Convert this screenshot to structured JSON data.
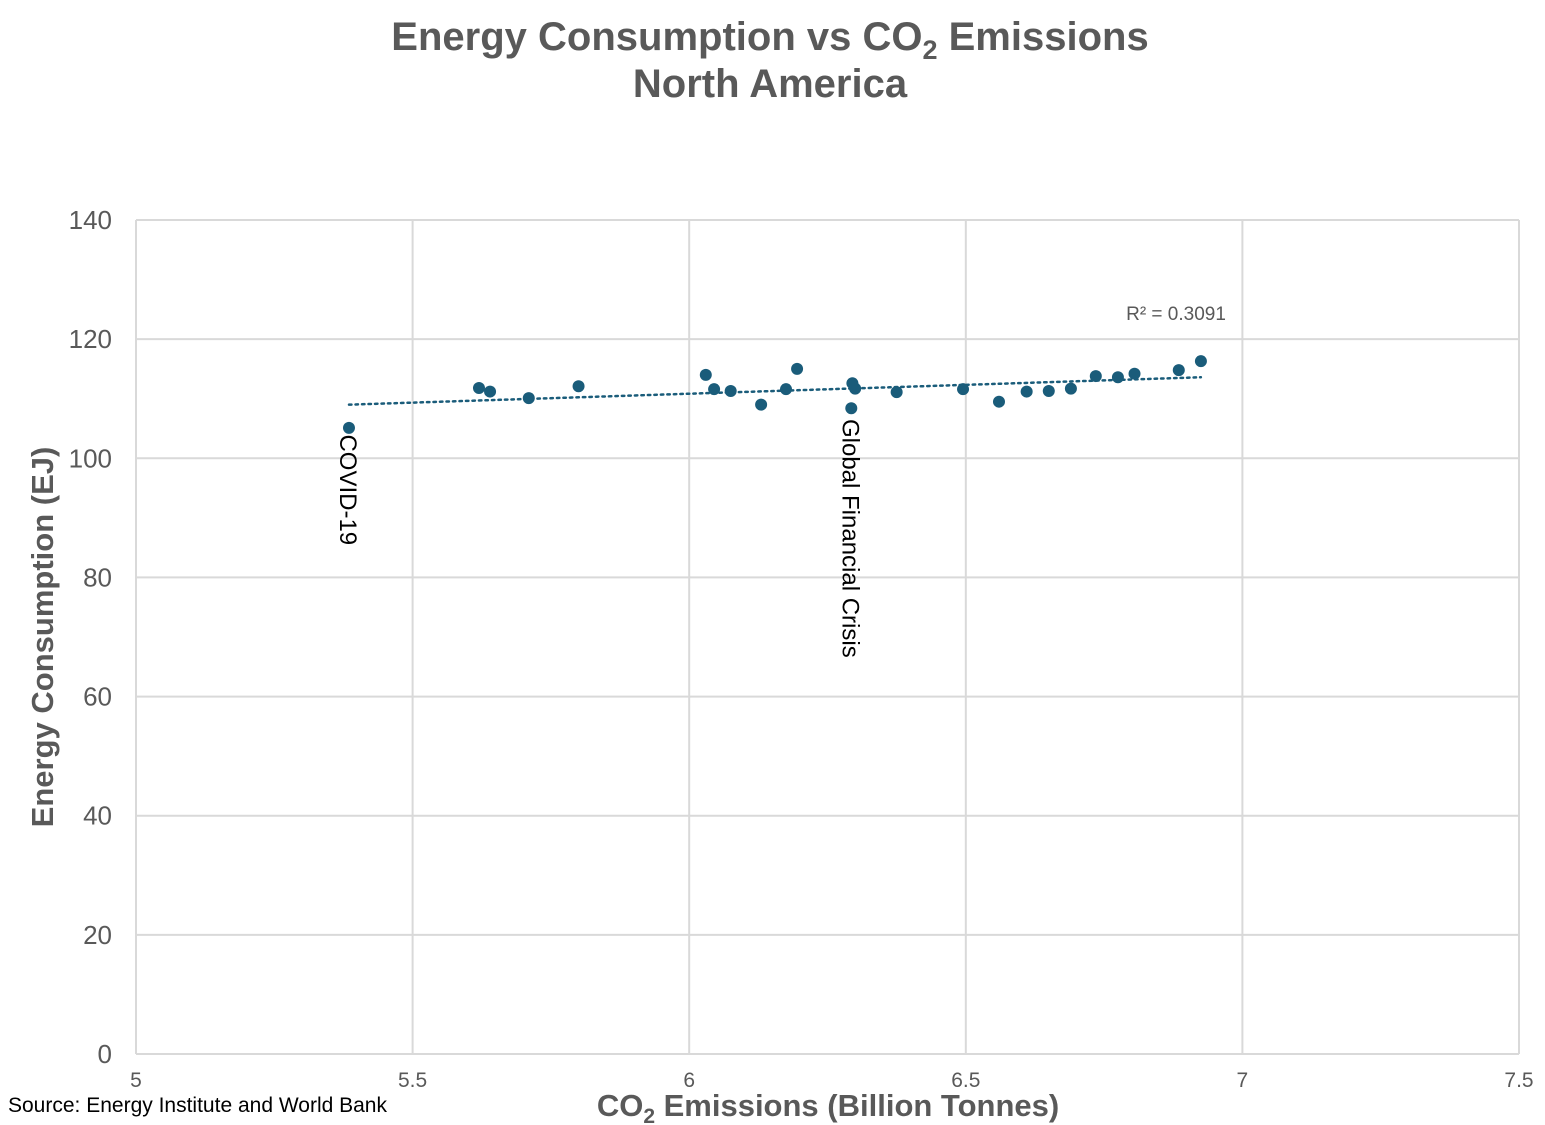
{
  "chart_data": {
    "type": "scatter",
    "title_line1_prefix": "Energy Consumption vs CO",
    "title_line1_sub": "2",
    "title_line1_suffix": " Emissions",
    "title_line2": "North America",
    "xlabel_prefix": "CO",
    "xlabel_sub": "2",
    "xlabel_suffix": " Emissions (Billion Tonnes)",
    "ylabel": "Energy Consumption (EJ)",
    "xlim": [
      5,
      7.5
    ],
    "ylim": [
      0,
      140
    ],
    "xticks": [
      "5",
      "5.5",
      "6",
      "6.5",
      "7",
      "7.5"
    ],
    "xtick_values": [
      5,
      5.5,
      6,
      6.5,
      7,
      7.5
    ],
    "yticks": [
      "0",
      "20",
      "40",
      "60",
      "80",
      "100",
      "120",
      "140"
    ],
    "ytick_values": [
      0,
      20,
      40,
      60,
      80,
      100,
      120,
      140
    ],
    "grid": true,
    "point_color": "#1a5c7a",
    "series": [
      {
        "name": "North America",
        "points": [
          {
            "x": 5.385,
            "y": 105.1
          },
          {
            "x": 5.62,
            "y": 111.8
          },
          {
            "x": 5.64,
            "y": 111.2
          },
          {
            "x": 5.71,
            "y": 110.1
          },
          {
            "x": 5.8,
            "y": 112.1
          },
          {
            "x": 6.03,
            "y": 114.0
          },
          {
            "x": 6.045,
            "y": 111.6
          },
          {
            "x": 6.075,
            "y": 111.3
          },
          {
            "x": 6.13,
            "y": 109.0
          },
          {
            "x": 6.175,
            "y": 111.6
          },
          {
            "x": 6.195,
            "y": 115.0
          },
          {
            "x": 6.295,
            "y": 112.6
          },
          {
            "x": 6.3,
            "y": 111.7
          },
          {
            "x": 6.293,
            "y": 108.4
          },
          {
            "x": 6.375,
            "y": 111.1
          },
          {
            "x": 6.495,
            "y": 111.6
          },
          {
            "x": 6.56,
            "y": 109.5
          },
          {
            "x": 6.61,
            "y": 111.2
          },
          {
            "x": 6.65,
            "y": 111.3
          },
          {
            "x": 6.69,
            "y": 111.7
          },
          {
            "x": 6.735,
            "y": 113.8
          },
          {
            "x": 6.775,
            "y": 113.6
          },
          {
            "x": 6.805,
            "y": 114.2
          },
          {
            "x": 6.885,
            "y": 114.8
          },
          {
            "x": 6.925,
            "y": 116.3
          }
        ]
      }
    ],
    "trendline": {
      "type": "linear",
      "style": "dotted",
      "x": [
        5.385,
        6.925
      ],
      "y": [
        109.0,
        113.6
      ],
      "r2_label": "R² = 0.3091",
      "r2_label_x": 6.88,
      "r2_label_y": 123.2
    },
    "annotations": [
      {
        "text": "COVID-19",
        "x": 5.385,
        "y": 104.0
      },
      {
        "text": "Global Financial Crisis",
        "x": 6.293,
        "y": 106.6
      }
    ]
  },
  "source": "Source: Energy Institute and World Bank"
}
